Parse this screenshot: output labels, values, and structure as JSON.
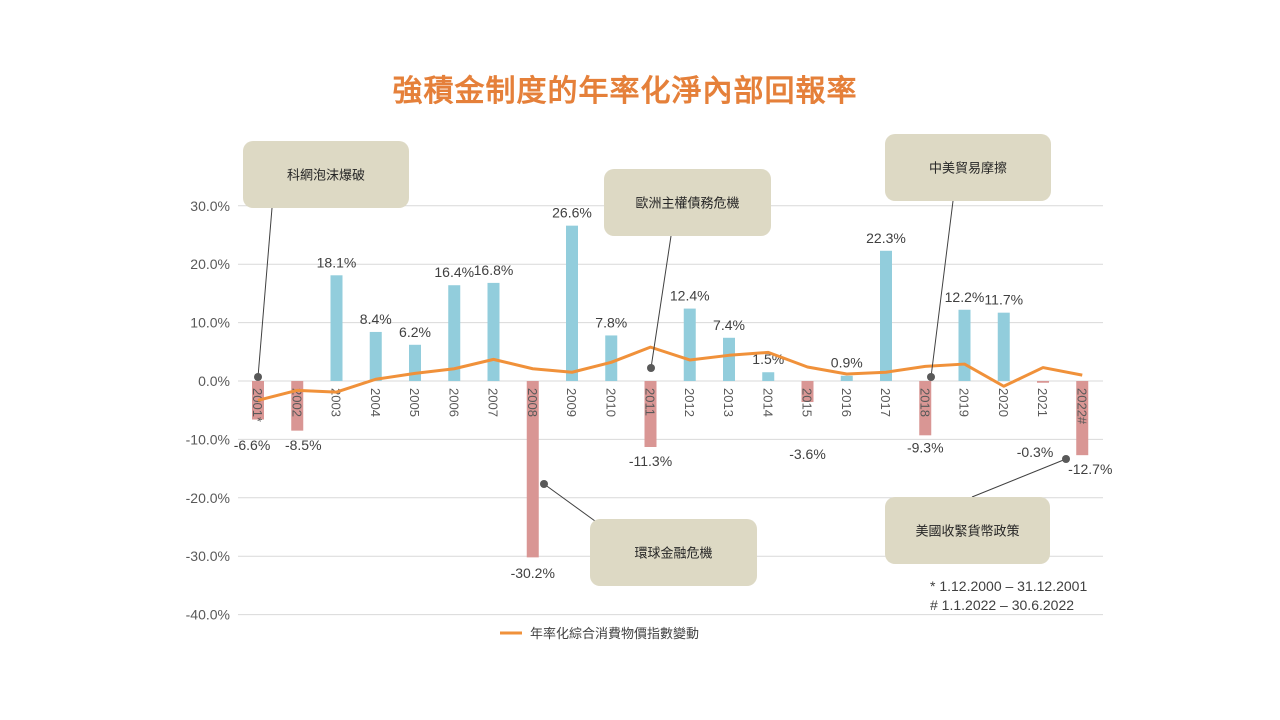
{
  "chart_data": {
    "type": "bar",
    "title": "強積金制度的年率化淨內部回報率",
    "categories": [
      "2001*",
      "2002",
      "2003",
      "2004",
      "2005",
      "2006",
      "2007",
      "2008",
      "2009",
      "2010",
      "2011",
      "2012",
      "2013",
      "2014",
      "2015",
      "2016",
      "2017",
      "2018",
      "2019",
      "2020",
      "2021",
      "2022#"
    ],
    "values": [
      -6.6,
      -8.5,
      18.1,
      8.4,
      6.2,
      16.4,
      16.8,
      -30.2,
      26.6,
      7.8,
      -11.3,
      12.4,
      7.4,
      1.5,
      -3.6,
      0.9,
      22.3,
      -9.3,
      12.2,
      11.7,
      -0.3,
      -12.7
    ],
    "data_labels": [
      "-6.6%",
      "-8.5%",
      "18.1%",
      "8.4%",
      "6.2%",
      "16.4%",
      "16.8%",
      "-30.2%",
      "26.6%",
      "7.8%",
      "-11.3%",
      "12.4%",
      "7.4%",
      "1.5%",
      "-3.6%",
      "0.9%",
      "22.3%",
      "-9.3%",
      "12.2%",
      "11.7%",
      "-0.3%",
      "-12.7%"
    ],
    "line_series": {
      "name": "年率化綜合消費物價指數變動",
      "type": "line",
      "values": [
        -3.3,
        -1.6,
        -1.9,
        0.3,
        1.3,
        2.1,
        3.7,
        2.1,
        1.5,
        3.2,
        5.8,
        3.6,
        4.4,
        4.9,
        2.4,
        1.2,
        1.5,
        2.5,
        2.9,
        -0.9,
        2.3,
        1.0
      ]
    },
    "ylim": [
      -40,
      30
    ],
    "y_ticks": [
      "30.0%",
      "20.0%",
      "10.0%",
      "0.0%",
      "-10.0%",
      "-20.0%",
      "-30.0%",
      "-40.0%"
    ],
    "y_tick_values": [
      30,
      20,
      10,
      0,
      -10,
      -20,
      -30,
      -40
    ],
    "grid": true,
    "legend_position": "bottom",
    "colors": {
      "positive": "#92cddc",
      "negative": "#d99694",
      "line": "#f0913a",
      "title": "#e5803a",
      "callout": "#ddd9c4"
    },
    "annotations": [
      {
        "text": "科網泡沫爆破",
        "year_index": 0
      },
      {
        "text": "歐洲主權債務危機",
        "year_index": 10
      },
      {
        "text": "中美貿易摩擦",
        "year_index": 17
      },
      {
        "text": "環球金融危機",
        "year_index": 7
      },
      {
        "text": "美國收緊貨幣政策",
        "year_index": 21
      }
    ],
    "footnotes": [
      "* 1.12.2000 – 31.12.2001",
      "# 1.1.2022 – 30.6.2022"
    ]
  }
}
